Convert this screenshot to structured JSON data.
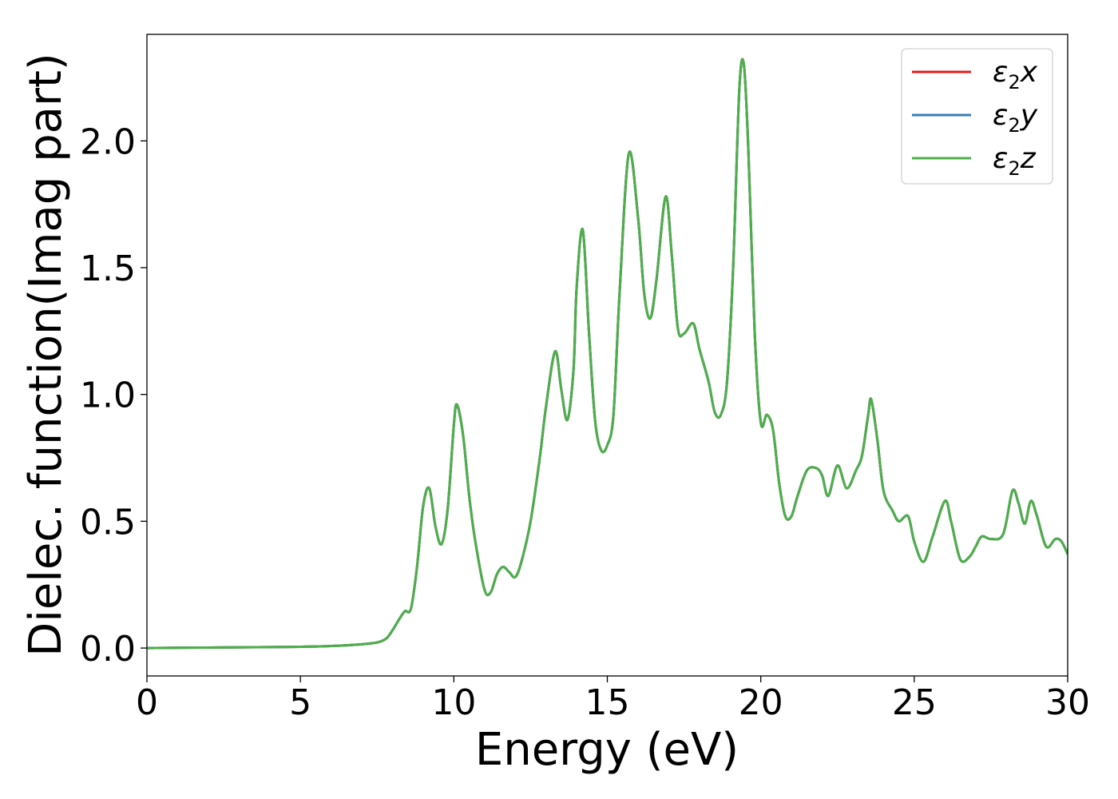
{
  "chart_data": {
    "type": "line",
    "title": "",
    "xlabel": "Energy (eV)",
    "ylabel": "Dielec. function(Imag part)",
    "xlim": [
      0,
      30
    ],
    "ylim": [
      -0.11,
      2.42
    ],
    "xticks": [
      0,
      5,
      10,
      15,
      20,
      25,
      30
    ],
    "xtick_labels": [
      "0",
      "5",
      "10",
      "15",
      "20",
      "25",
      "30"
    ],
    "yticks": [
      0.0,
      0.5,
      1.0,
      1.5,
      2.0
    ],
    "ytick_labels": [
      "0.0",
      "0.5",
      "1.0",
      "1.5",
      "2.0"
    ],
    "grid": false,
    "legend_position": "top-right",
    "series": [
      {
        "name": "ε2x",
        "legend_base": "ε",
        "legend_sub": "2",
        "legend_suffix": "x",
        "color": "#e41a1c",
        "x": [
          0,
          2,
          4,
          5,
          6,
          7,
          7.5,
          7.8,
          8.0,
          8.2,
          8.4,
          8.6,
          8.8,
          9.0,
          9.2,
          9.4,
          9.6,
          9.8,
          10.0,
          10.1,
          10.3,
          10.5,
          10.7,
          11.0,
          11.2,
          11.4,
          11.6,
          11.8,
          12.0,
          12.2,
          12.5,
          12.8,
          13.0,
          13.3,
          13.5,
          13.7,
          13.9,
          14.0,
          14.2,
          14.4,
          14.6,
          14.8,
          15.0,
          15.2,
          15.4,
          15.7,
          16.0,
          16.2,
          16.4,
          16.6,
          16.9,
          17.1,
          17.3,
          17.5,
          17.8,
          18.0,
          18.3,
          18.5,
          18.7,
          18.9,
          19.1,
          19.3,
          19.45,
          19.6,
          19.8,
          20.0,
          20.2,
          20.4,
          20.6,
          20.8,
          21.0,
          21.2,
          21.5,
          21.8,
          22.0,
          22.2,
          22.5,
          22.8,
          23.1,
          23.3,
          23.5,
          23.6,
          23.8,
          24.0,
          24.3,
          24.5,
          24.8,
          25.0,
          25.3,
          25.6,
          26.0,
          26.2,
          26.5,
          26.8,
          27.0,
          27.2,
          27.5,
          27.9,
          28.2,
          28.4,
          28.6,
          28.8,
          29.0,
          29.3,
          29.6,
          29.8,
          30.0
        ],
        "y": [
          0.0,
          0.002,
          0.004,
          0.005,
          0.008,
          0.015,
          0.022,
          0.038,
          0.07,
          0.11,
          0.145,
          0.155,
          0.32,
          0.56,
          0.63,
          0.48,
          0.41,
          0.55,
          0.88,
          0.96,
          0.84,
          0.6,
          0.42,
          0.23,
          0.22,
          0.29,
          0.32,
          0.3,
          0.28,
          0.34,
          0.5,
          0.75,
          0.95,
          1.17,
          1.02,
          0.9,
          1.1,
          1.42,
          1.65,
          1.25,
          0.9,
          0.78,
          0.8,
          0.92,
          1.4,
          1.95,
          1.7,
          1.4,
          1.3,
          1.45,
          1.78,
          1.55,
          1.26,
          1.24,
          1.28,
          1.18,
          1.05,
          0.93,
          0.92,
          1.05,
          1.5,
          2.2,
          2.3,
          1.95,
          1.25,
          0.89,
          0.92,
          0.86,
          0.65,
          0.52,
          0.52,
          0.6,
          0.7,
          0.71,
          0.68,
          0.6,
          0.72,
          0.63,
          0.7,
          0.76,
          0.92,
          0.98,
          0.82,
          0.62,
          0.54,
          0.5,
          0.52,
          0.42,
          0.34,
          0.44,
          0.58,
          0.5,
          0.35,
          0.36,
          0.4,
          0.44,
          0.43,
          0.45,
          0.62,
          0.57,
          0.49,
          0.58,
          0.52,
          0.4,
          0.43,
          0.42,
          0.37
        ]
      },
      {
        "name": "ε2y",
        "legend_base": "ε",
        "legend_sub": "2",
        "legend_suffix": "y",
        "color": "#377eb8",
        "x": [
          0,
          2,
          4,
          5,
          6,
          7,
          7.5,
          7.8,
          8.0,
          8.2,
          8.4,
          8.6,
          8.8,
          9.0,
          9.2,
          9.4,
          9.6,
          9.8,
          10.0,
          10.1,
          10.3,
          10.5,
          10.7,
          11.0,
          11.2,
          11.4,
          11.6,
          11.8,
          12.0,
          12.2,
          12.5,
          12.8,
          13.0,
          13.3,
          13.5,
          13.7,
          13.9,
          14.0,
          14.2,
          14.4,
          14.6,
          14.8,
          15.0,
          15.2,
          15.4,
          15.7,
          16.0,
          16.2,
          16.4,
          16.6,
          16.9,
          17.1,
          17.3,
          17.5,
          17.8,
          18.0,
          18.3,
          18.5,
          18.7,
          18.9,
          19.1,
          19.3,
          19.45,
          19.6,
          19.8,
          20.0,
          20.2,
          20.4,
          20.6,
          20.8,
          21.0,
          21.2,
          21.5,
          21.8,
          22.0,
          22.2,
          22.5,
          22.8,
          23.1,
          23.3,
          23.5,
          23.6,
          23.8,
          24.0,
          24.3,
          24.5,
          24.8,
          25.0,
          25.3,
          25.6,
          26.0,
          26.2,
          26.5,
          26.8,
          27.0,
          27.2,
          27.5,
          27.9,
          28.2,
          28.4,
          28.6,
          28.8,
          29.0,
          29.3,
          29.6,
          29.8,
          30.0
        ],
        "y": [
          0.0,
          0.002,
          0.004,
          0.005,
          0.008,
          0.015,
          0.022,
          0.038,
          0.07,
          0.11,
          0.145,
          0.155,
          0.32,
          0.56,
          0.63,
          0.48,
          0.41,
          0.55,
          0.88,
          0.96,
          0.84,
          0.6,
          0.42,
          0.23,
          0.22,
          0.29,
          0.32,
          0.3,
          0.28,
          0.34,
          0.5,
          0.75,
          0.95,
          1.17,
          1.02,
          0.9,
          1.1,
          1.42,
          1.65,
          1.25,
          0.9,
          0.78,
          0.8,
          0.92,
          1.4,
          1.95,
          1.7,
          1.4,
          1.3,
          1.45,
          1.78,
          1.55,
          1.26,
          1.24,
          1.28,
          1.18,
          1.05,
          0.93,
          0.92,
          1.05,
          1.5,
          2.2,
          2.3,
          1.95,
          1.25,
          0.89,
          0.92,
          0.86,
          0.65,
          0.52,
          0.52,
          0.6,
          0.7,
          0.71,
          0.68,
          0.6,
          0.72,
          0.63,
          0.7,
          0.76,
          0.92,
          0.98,
          0.82,
          0.62,
          0.54,
          0.5,
          0.52,
          0.42,
          0.34,
          0.44,
          0.58,
          0.5,
          0.35,
          0.36,
          0.4,
          0.44,
          0.43,
          0.45,
          0.62,
          0.57,
          0.49,
          0.58,
          0.52,
          0.4,
          0.43,
          0.42,
          0.37
        ]
      },
      {
        "name": "ε2z",
        "legend_base": "ε",
        "legend_sub": "2",
        "legend_suffix": "z",
        "color": "#4daf4a",
        "x": [
          0,
          2,
          4,
          5,
          6,
          7,
          7.5,
          7.8,
          8.0,
          8.2,
          8.4,
          8.6,
          8.8,
          9.0,
          9.2,
          9.4,
          9.6,
          9.8,
          10.0,
          10.1,
          10.3,
          10.5,
          10.7,
          11.0,
          11.2,
          11.4,
          11.6,
          11.8,
          12.0,
          12.2,
          12.5,
          12.8,
          13.0,
          13.3,
          13.5,
          13.7,
          13.9,
          14.0,
          14.2,
          14.4,
          14.6,
          14.8,
          15.0,
          15.2,
          15.4,
          15.7,
          16.0,
          16.2,
          16.4,
          16.6,
          16.9,
          17.1,
          17.3,
          17.5,
          17.8,
          18.0,
          18.3,
          18.5,
          18.7,
          18.9,
          19.1,
          19.3,
          19.45,
          19.6,
          19.8,
          20.0,
          20.2,
          20.4,
          20.6,
          20.8,
          21.0,
          21.2,
          21.5,
          21.8,
          22.0,
          22.2,
          22.5,
          22.8,
          23.1,
          23.3,
          23.5,
          23.6,
          23.8,
          24.0,
          24.3,
          24.5,
          24.8,
          25.0,
          25.3,
          25.6,
          26.0,
          26.2,
          26.5,
          26.8,
          27.0,
          27.2,
          27.5,
          27.9,
          28.2,
          28.4,
          28.6,
          28.8,
          29.0,
          29.3,
          29.6,
          29.8,
          30.0
        ],
        "y": [
          0.0,
          0.002,
          0.004,
          0.005,
          0.008,
          0.015,
          0.022,
          0.038,
          0.07,
          0.11,
          0.145,
          0.155,
          0.32,
          0.56,
          0.63,
          0.48,
          0.41,
          0.55,
          0.88,
          0.96,
          0.84,
          0.6,
          0.42,
          0.23,
          0.22,
          0.29,
          0.32,
          0.3,
          0.28,
          0.34,
          0.5,
          0.75,
          0.95,
          1.17,
          1.02,
          0.9,
          1.1,
          1.42,
          1.65,
          1.25,
          0.9,
          0.78,
          0.8,
          0.92,
          1.4,
          1.95,
          1.7,
          1.4,
          1.3,
          1.45,
          1.78,
          1.55,
          1.26,
          1.24,
          1.28,
          1.18,
          1.05,
          0.93,
          0.92,
          1.05,
          1.5,
          2.2,
          2.3,
          1.95,
          1.25,
          0.89,
          0.92,
          0.86,
          0.65,
          0.52,
          0.52,
          0.6,
          0.7,
          0.71,
          0.68,
          0.6,
          0.72,
          0.63,
          0.7,
          0.76,
          0.92,
          0.98,
          0.82,
          0.62,
          0.54,
          0.5,
          0.52,
          0.42,
          0.34,
          0.44,
          0.58,
          0.5,
          0.35,
          0.36,
          0.4,
          0.44,
          0.43,
          0.45,
          0.62,
          0.57,
          0.49,
          0.58,
          0.52,
          0.4,
          0.43,
          0.42,
          0.37
        ]
      }
    ]
  }
}
